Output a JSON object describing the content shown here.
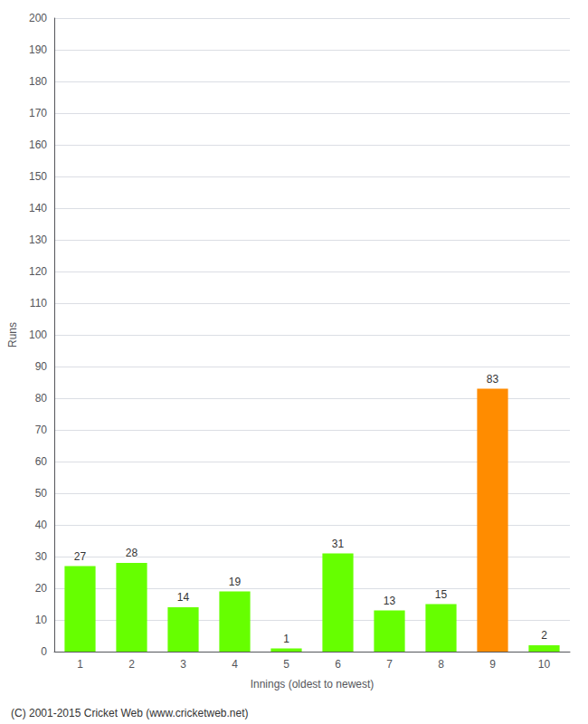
{
  "chart_data": {
    "type": "bar",
    "xlabel": "Innings (oldest to newest)",
    "ylabel": "Runs",
    "categories": [
      "1",
      "2",
      "3",
      "4",
      "5",
      "6",
      "7",
      "8",
      "9",
      "10"
    ],
    "values": [
      27,
      28,
      14,
      19,
      1,
      31,
      13,
      15,
      83,
      2
    ],
    "colors": [
      "#66ff00",
      "#66ff00",
      "#66ff00",
      "#66ff00",
      "#66ff00",
      "#66ff00",
      "#66ff00",
      "#66ff00",
      "#ff8c00",
      "#66ff00"
    ],
    "ylim": [
      0,
      200
    ],
    "yticks": [
      0,
      10,
      20,
      30,
      40,
      50,
      60,
      70,
      80,
      90,
      100,
      110,
      120,
      130,
      140,
      150,
      160,
      170,
      180,
      190,
      200
    ],
    "grid": true,
    "data_labels": true,
    "annotations": [
      "(C) 2001-2015 Cricket Web (www.cricketweb.net)"
    ]
  }
}
